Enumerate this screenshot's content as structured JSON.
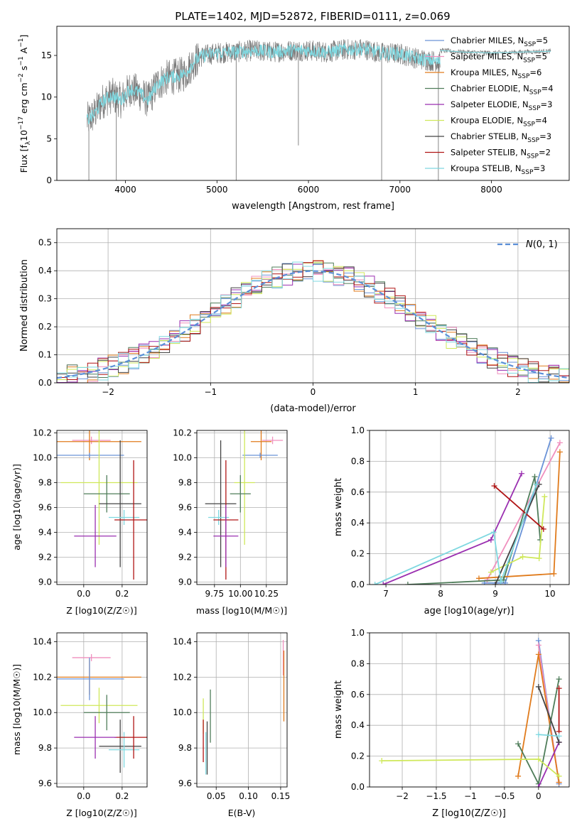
{
  "figure_title": "PLATE=1402, MJD=52872, FIBERID=0111, z=0.069",
  "colors": {
    "Chabrier MILES": "#6a93d8",
    "Salpeter MILES": "#f08fbe",
    "Kroupa MILES": "#e07b1c",
    "Chabrier ELODIE": "#4f7d5a",
    "Salpeter ELODIE": "#9a2fb0",
    "Kroupa ELODIE": "#cfe85a",
    "Chabrier STELIB": "#444444",
    "Salpeter STELIB": "#b01515",
    "Kroupa STELIB": "#7fd8e0",
    "gaussian": "#5b8fd8",
    "data_line": "#7a7a7a"
  },
  "chart_data": [
    {
      "id": "spectrum",
      "type": "line",
      "title": "PLATE=1402, MJD=52872, FIBERID=0111, z=0.069",
      "xlabel": "wavelength [Angstrom, rest frame]",
      "ylabel": "Flux [f_λ 10^-17 erg cm^-2 s^-1 A^-1]",
      "xlim": [
        3250,
        8850
      ],
      "ylim": [
        0,
        18.5
      ],
      "xticks": [
        4000,
        5000,
        6000,
        7000,
        8000
      ],
      "yticks": [
        0,
        5,
        10,
        15
      ],
      "legend": "right",
      "legend_entries": [
        {
          "model": "Chabrier MILES",
          "label": "Chabrier MILES, N",
          "sub": "SSP",
          "tail": "=5"
        },
        {
          "model": "Salpeter MILES",
          "label": "Salpeter MILES, N",
          "sub": "SSP",
          "tail": "=5"
        },
        {
          "model": "Kroupa MILES",
          "label": "Kroupa MILES, N",
          "sub": "SSP",
          "tail": "=6"
        },
        {
          "model": "Chabrier ELODIE",
          "label": "Chabrier ELODIE, N",
          "sub": "SSP",
          "tail": "=4"
        },
        {
          "model": "Salpeter ELODIE",
          "label": "Salpeter ELODIE, N",
          "sub": "SSP",
          "tail": "=3"
        },
        {
          "model": "Kroupa ELODIE",
          "label": "Kroupa ELODIE, N",
          "sub": "SSP",
          "tail": "=4"
        },
        {
          "model": "Chabrier STELIB",
          "label": "Chabrier STELIB, N",
          "sub": "SSP",
          "tail": "=3"
        },
        {
          "model": "Salpeter STELIB",
          "label": "Salpeter STELIB, N",
          "sub": "SSP",
          "tail": "=2"
        },
        {
          "model": "Kroupa STELIB",
          "label": "Kroupa STELIB, N",
          "sub": "SSP",
          "tail": "=3"
        }
      ],
      "continuum": {
        "x": [
          3580,
          3650,
          3750,
          3850,
          3950,
          4050,
          4150,
          4250,
          4350,
          4450,
          4550,
          4650,
          4750,
          4850,
          5000,
          5200,
          5400,
          5600,
          5800,
          6000,
          6200,
          6400,
          6600,
          6800,
          7000,
          7200,
          7400,
          7440
        ],
        "y": [
          7.2,
          7.8,
          9.5,
          10.2,
          9.6,
          11.0,
          10.5,
          9.6,
          11.6,
          12.3,
          12.5,
          12.8,
          14.3,
          15.0,
          15.3,
          15.4,
          15.6,
          15.4,
          15.6,
          15.6,
          15.4,
          15.7,
          15.8,
          15.3,
          15.2,
          14.6,
          14.3,
          14.2
        ]
      },
      "continuum_red": {
        "x": [
          7440,
          7700,
          8000,
          8300,
          8650
        ],
        "y": [
          15.6,
          15.4,
          15.3,
          15.4,
          15.5
        ]
      },
      "spikes_down": [
        {
          "x": 3600,
          "y": 0
        },
        {
          "x": 3900,
          "y": 0
        },
        {
          "x": 5210,
          "y": 0
        },
        {
          "x": 5890,
          "y": 4.2
        },
        {
          "x": 6800,
          "y": 0
        },
        {
          "x": 7420,
          "y": 0
        }
      ]
    },
    {
      "id": "residuals",
      "type": "histogram",
      "xlabel": "(data-model)/error",
      "ylabel": "Normed distribution",
      "xlim": [
        -2.5,
        2.5
      ],
      "ylim": [
        0,
        0.55
      ],
      "xticks": [
        -2,
        -1,
        0,
        1,
        2
      ],
      "yticks": [
        0.0,
        0.1,
        0.2,
        0.3,
        0.4,
        0.5
      ],
      "legend": "top-right",
      "legend_label": "N(0, 1)",
      "bin_width": 0.1,
      "bin_start": -2.5
    },
    {
      "id": "age_vs_Z",
      "type": "errorbar",
      "xlabel": "Z [log10(Z/Z☉)]",
      "ylabel": "age [log10(age/yr)]",
      "xlim": [
        -0.14,
        0.33
      ],
      "ylim": [
        8.98,
        10.22
      ],
      "xticks": [
        0.0,
        0.2
      ],
      "yticks": [
        9.0,
        9.2,
        9.4,
        9.6,
        9.8,
        10.0,
        10.2
      ],
      "points": [
        {
          "model": "Salpeter MILES",
          "x": 0.04,
          "xerr": 0.1,
          "y": 10.14,
          "yerr": 0.03
        },
        {
          "model": "Kroupa MILES",
          "x": 0.03,
          "xerr": 0.27,
          "y": 10.13,
          "yerr": 0.15
        },
        {
          "model": "Chabrier MILES",
          "x": 0.03,
          "xerr": 0.18,
          "y": 10.02,
          "yerr": 0.02
        },
        {
          "model": "Kroupa ELODIE",
          "x": 0.08,
          "xerr": 0.2,
          "y": 9.8,
          "yerr": 0.5
        },
        {
          "model": "Chabrier ELODIE",
          "x": 0.12,
          "xerr": 0.12,
          "y": 9.71,
          "yerr": 0.15
        },
        {
          "model": "Chabrier STELIB",
          "x": 0.19,
          "xerr": 0.11,
          "y": 9.63,
          "yerr": 0.51
        },
        {
          "model": "Kroupa STELIB",
          "x": 0.21,
          "xerr": 0.08,
          "y": 9.52,
          "yerr": 0.06
        },
        {
          "model": "Salpeter STELIB",
          "x": 0.26,
          "xerr": 0.1,
          "y": 9.5,
          "yerr": 0.48
        },
        {
          "model": "Salpeter ELODIE",
          "x": 0.06,
          "xerr": 0.11,
          "y": 9.37,
          "yerr": 0.25
        }
      ]
    },
    {
      "id": "age_vs_mass",
      "type": "errorbar",
      "xlabel": "mass [log10(M/M☉)]",
      "ylabel": "",
      "xlim": [
        9.58,
        10.45
      ],
      "ylim": [
        8.98,
        10.22
      ],
      "xticks": [
        9.75,
        10.0,
        10.25
      ],
      "yticks": [
        9.0,
        9.2,
        9.4,
        9.6,
        9.8,
        10.0,
        10.2
      ],
      "points": [
        {
          "model": "Salpeter MILES",
          "x": 10.31,
          "xerr": 0.1,
          "y": 10.14,
          "yerr": 0.03
        },
        {
          "model": "Kroupa MILES",
          "x": 10.2,
          "xerr": 0.1,
          "y": 10.13,
          "yerr": 0.15
        },
        {
          "model": "Chabrier MILES",
          "x": 10.19,
          "xerr": 0.17,
          "y": 10.02,
          "yerr": 0.02
        },
        {
          "model": "Kroupa ELODIE",
          "x": 10.04,
          "xerr": 0.1,
          "y": 9.8,
          "yerr": 0.5
        },
        {
          "model": "Chabrier ELODIE",
          "x": 10.0,
          "xerr": 0.1,
          "y": 9.71,
          "yerr": 0.15
        },
        {
          "model": "Chabrier STELIB",
          "x": 9.81,
          "xerr": 0.15,
          "y": 9.63,
          "yerr": 0.51
        },
        {
          "model": "Kroupa STELIB",
          "x": 9.79,
          "xerr": 0.1,
          "y": 9.52,
          "yerr": 0.06
        },
        {
          "model": "Salpeter STELIB",
          "x": 9.86,
          "xerr": 0.12,
          "y": 9.5,
          "yerr": 0.48
        },
        {
          "model": "Salpeter ELODIE",
          "x": 9.86,
          "xerr": 0.12,
          "y": 9.37,
          "yerr": 0.25
        }
      ]
    },
    {
      "id": "weight_vs_age",
      "type": "line",
      "xlabel": "age [log10(age/yr)]",
      "ylabel": "mass weight",
      "xlim": [
        6.7,
        10.35
      ],
      "ylim": [
        0,
        1
      ],
      "xticks": [
        7,
        8,
        9,
        10
      ],
      "yticks": [
        0.0,
        0.2,
        0.4,
        0.6,
        0.8,
        1.0
      ],
      "series": [
        {
          "model": "Chabrier MILES",
          "points": [
            [
              8.8,
              0.01
            ],
            [
              9.18,
              0.01
            ],
            [
              10.02,
              0.95
            ]
          ]
        },
        {
          "model": "Salpeter MILES",
          "points": [
            [
              8.85,
              0.03
            ],
            [
              10.18,
              0.92
            ]
          ]
        },
        {
          "model": "Kroupa MILES",
          "points": [
            [
              8.7,
              0.04
            ],
            [
              10.07,
              0.07
            ],
            [
              10.18,
              0.86
            ]
          ]
        },
        {
          "model": "Chabrier ELODIE",
          "points": [
            [
              7.4,
              0.0
            ],
            [
              9.15,
              0.03
            ],
            [
              9.72,
              0.7
            ],
            [
              9.82,
              0.29
            ]
          ]
        },
        {
          "model": "Salpeter ELODIE",
          "points": [
            [
              6.95,
              0.0
            ],
            [
              8.92,
              0.29
            ],
            [
              9.48,
              0.72
            ]
          ]
        },
        {
          "model": "Kroupa ELODIE",
          "points": [
            [
              8.92,
              0.08
            ],
            [
              9.5,
              0.18
            ],
            [
              9.8,
              0.17
            ],
            [
              9.9,
              0.57
            ]
          ]
        },
        {
          "model": "Chabrier STELIB",
          "points": [
            [
              9.0,
              0.0
            ],
            [
              9.8,
              0.65
            ]
          ]
        },
        {
          "model": "Salpeter STELIB",
          "points": [
            [
              8.98,
              0.64
            ],
            [
              9.88,
              0.36
            ]
          ]
        },
        {
          "model": "Kroupa STELIB",
          "points": [
            [
              6.8,
              0.0
            ],
            [
              8.97,
              0.34
            ],
            [
              9.1,
              0.02
            ],
            [
              9.75,
              0.65
            ]
          ]
        }
      ]
    },
    {
      "id": "mass_vs_Z",
      "type": "errorbar",
      "xlabel": "Z [log10(Z/Z☉)]",
      "ylabel": "mass [log10(M/M☉)]",
      "xlim": [
        -0.14,
        0.33
      ],
      "ylim": [
        9.58,
        10.45
      ],
      "xticks": [
        0.0,
        0.2
      ],
      "yticks": [
        9.6,
        9.8,
        10.0,
        10.2,
        10.4
      ],
      "points": [
        {
          "model": "Salpeter MILES",
          "x": 0.04,
          "xerr": 0.1,
          "y": 10.31,
          "yerr": 0.02
        },
        {
          "model": "Kroupa MILES",
          "x": 0.03,
          "xerr": 0.27,
          "y": 10.2,
          "yerr": 0.1
        },
        {
          "model": "Chabrier MILES",
          "x": 0.03,
          "xerr": 0.18,
          "y": 10.19,
          "yerr": 0.12
        },
        {
          "model": "Kroupa ELODIE",
          "x": 0.08,
          "xerr": 0.2,
          "y": 10.04,
          "yerr": 0.1
        },
        {
          "model": "Chabrier ELODIE",
          "x": 0.12,
          "xerr": 0.12,
          "y": 10.0,
          "yerr": 0.1
        },
        {
          "model": "Chabrier STELIB",
          "x": 0.19,
          "xerr": 0.11,
          "y": 9.81,
          "yerr": 0.15
        },
        {
          "model": "Kroupa STELIB",
          "x": 0.21,
          "xerr": 0.08,
          "y": 9.79,
          "yerr": 0.1
        },
        {
          "model": "Salpeter STELIB",
          "x": 0.26,
          "xerr": 0.1,
          "y": 9.86,
          "yerr": 0.12
        },
        {
          "model": "Salpeter ELODIE",
          "x": 0.06,
          "xerr": 0.11,
          "y": 9.86,
          "yerr": 0.12
        }
      ]
    },
    {
      "id": "mass_vs_ebv",
      "type": "errorbar",
      "xlabel": "E(B-V)",
      "ylabel": "",
      "xlim": [
        0.02,
        0.16
      ],
      "ylim": [
        9.58,
        10.45
      ],
      "xticks": [
        0.05,
        0.1,
        0.15
      ],
      "yticks": [
        9.6,
        9.8,
        10.0,
        10.2,
        10.4
      ],
      "points": [
        {
          "model": "Salpeter MILES",
          "x": 0.154,
          "y": 10.31,
          "yerr": 0.1
        },
        {
          "model": "Kroupa MILES",
          "x": 0.155,
          "y": 10.15,
          "yerr": 0.2
        },
        {
          "model": "Kroupa ELODIE",
          "x": 0.03,
          "y": 9.98,
          "yerr": 0.1
        },
        {
          "model": "Chabrier ELODIE",
          "x": 0.041,
          "y": 9.98,
          "yerr": 0.15
        },
        {
          "model": "Chabrier STELIB",
          "x": 0.036,
          "y": 9.8,
          "yerr": 0.15
        },
        {
          "model": "Kroupa STELIB",
          "x": 0.034,
          "y": 9.77,
          "yerr": 0.12
        },
        {
          "model": "Salpeter STELIB",
          "x": 0.03,
          "y": 9.84,
          "yerr": 0.12
        }
      ]
    },
    {
      "id": "weight_vs_Z",
      "type": "line",
      "xlabel": "Z [log10(Z/Z☉)]",
      "ylabel": "mass weight",
      "xlim": [
        -2.48,
        0.45
      ],
      "ylim": [
        0,
        1
      ],
      "xticks": [
        -2.0,
        -1.5,
        -1.0,
        -0.5,
        0.0
      ],
      "yticks": [
        0.0,
        0.2,
        0.4,
        0.6,
        0.8,
        1.0
      ],
      "series": [
        {
          "model": "Chabrier MILES",
          "points": [
            [
              0.0,
              0.95
            ],
            [
              0.3,
              0.02
            ]
          ]
        },
        {
          "model": "Salpeter MILES",
          "points": [
            [
              0.0,
              0.92
            ],
            [
              0.3,
              0.03
            ]
          ]
        },
        {
          "model": "Kroupa MILES",
          "points": [
            [
              -0.3,
              0.07
            ],
            [
              0.0,
              0.86
            ],
            [
              0.3,
              0.03
            ]
          ]
        },
        {
          "model": "Chabrier ELODIE",
          "points": [
            [
              -0.3,
              0.28
            ],
            [
              0.0,
              0.02
            ],
            [
              0.3,
              0.7
            ]
          ]
        },
        {
          "model": "Salpeter ELODIE",
          "points": [
            [
              0.0,
              0.0
            ],
            [
              0.3,
              0.29
            ]
          ]
        },
        {
          "model": "Kroupa ELODIE",
          "points": [
            [
              -2.3,
              0.17
            ],
            [
              0.0,
              0.18
            ],
            [
              0.3,
              0.07
            ]
          ]
        },
        {
          "model": "Chabrier STELIB",
          "points": [
            [
              0.0,
              0.65
            ],
            [
              0.3,
              0.29
            ]
          ]
        },
        {
          "model": "Salpeter STELIB",
          "points": [
            [
              0.3,
              0.64
            ],
            [
              0.3,
              0.36
            ]
          ]
        },
        {
          "model": "Kroupa STELIB",
          "points": [
            [
              0.0,
              0.34
            ],
            [
              0.3,
              0.33
            ]
          ]
        }
      ]
    }
  ]
}
